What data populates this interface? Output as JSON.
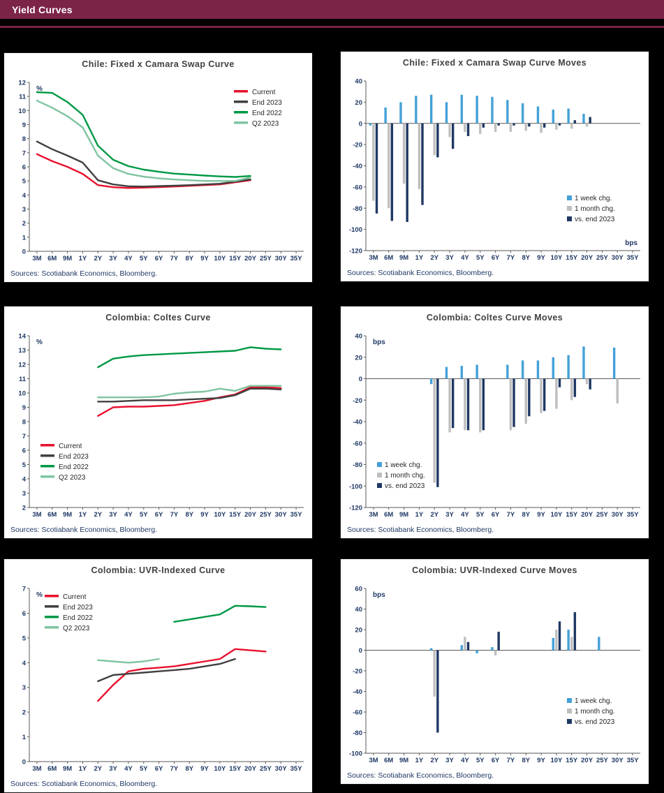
{
  "page": {
    "header_title": "Yield Curves",
    "header_color": "#7c2348",
    "background": "#000000"
  },
  "chart_data": [
    {
      "title": "Chile: Fixed x Camara Swap Curve",
      "sources": "Sources: Scotiabank Economics, Bloomberg.",
      "type": "line",
      "unit": "%",
      "unit_pos": "top-left",
      "ylim": [
        0,
        12
      ],
      "ystep": 1,
      "legend_pos": "top-right",
      "grid": false,
      "categories": [
        "3M",
        "6M",
        "9M",
        "1Y",
        "2Y",
        "3Y",
        "4Y",
        "5Y",
        "6Y",
        "7Y",
        "8Y",
        "9Y",
        "10Y",
        "15Y",
        "20Y",
        "25Y",
        "30Y",
        "35Y"
      ],
      "series": [
        {
          "name": "Current",
          "color": "#e8112d",
          "values": [
            6.9,
            6.4,
            6.0,
            5.5,
            4.7,
            4.55,
            4.5,
            4.52,
            4.56,
            4.6,
            4.65,
            4.7,
            4.75,
            4.9,
            5.05,
            null,
            null,
            null
          ]
        },
        {
          "name": "End 2023",
          "color": "#404040",
          "values": [
            7.8,
            7.25,
            6.8,
            6.3,
            5.05,
            4.75,
            4.62,
            4.6,
            4.63,
            4.66,
            4.7,
            4.75,
            4.8,
            4.95,
            5.1,
            null,
            null,
            null
          ]
        },
        {
          "name": "End 2022",
          "color": "#009845",
          "values": [
            11.3,
            11.25,
            10.6,
            9.7,
            7.5,
            6.5,
            6.05,
            5.8,
            5.65,
            5.52,
            5.45,
            5.38,
            5.32,
            5.28,
            5.35,
            null,
            null,
            null
          ]
        },
        {
          "name": "Q2 2023",
          "color": "#7fc4a1",
          "values": [
            10.7,
            10.2,
            9.6,
            8.8,
            6.8,
            5.9,
            5.5,
            5.3,
            5.18,
            5.1,
            5.05,
            5.0,
            5.0,
            5.0,
            5.25,
            null,
            null,
            null
          ]
        }
      ]
    },
    {
      "title": "Chile: Fixed x Camara Swap Curve Moves",
      "sources": "Sources: Scotiabank Economics, Bloomberg.",
      "type": "bar",
      "unit": "bps",
      "unit_pos": "bottom-right",
      "ylim": [
        -120,
        40
      ],
      "ystep": 20,
      "legend_pos": "right-low",
      "grid": false,
      "categories": [
        "3M",
        "6M",
        "9M",
        "1Y",
        "2Y",
        "3Y",
        "4Y",
        "5Y",
        "6Y",
        "7Y",
        "8Y",
        "9Y",
        "10Y",
        "15Y",
        "20Y",
        "25Y",
        "30Y",
        "35Y"
      ],
      "series": [
        {
          "name": "1 week chg.",
          "color": "#44a1d8",
          "values": [
            -2,
            15,
            20,
            26,
            27,
            20,
            27,
            26,
            25,
            22,
            19,
            16,
            13,
            14,
            9,
            null,
            null,
            null
          ]
        },
        {
          "name": "1 month chg.",
          "color": "#bfbfbf",
          "values": [
            -73,
            -80,
            -57,
            -62,
            -30,
            -13,
            -8,
            -10,
            -8,
            -8,
            -7,
            -9,
            -6,
            -5,
            -3,
            null,
            null,
            null
          ]
        },
        {
          "name": "vs. end 2023",
          "color": "#1f3864",
          "values": [
            -85,
            -92,
            -93,
            -77,
            -32,
            -24,
            -12,
            -4,
            -2,
            -2,
            -3,
            -4,
            -2,
            3,
            6,
            null,
            null,
            null
          ]
        }
      ]
    },
    {
      "title": "Colombia: Coltes Curve",
      "sources": "Sources: Scotiabank Economics, Bloomberg.",
      "type": "line",
      "unit": "%",
      "unit_pos": "top-left",
      "ylim": [
        2,
        14
      ],
      "ystep": 1,
      "legend_pos": "bottom-left",
      "grid": false,
      "categories": [
        "3M",
        "6M",
        "9M",
        "1Y",
        "2Y",
        "3Y",
        "4Y",
        "5Y",
        "6Y",
        "7Y",
        "8Y",
        "9Y",
        "10Y",
        "15Y",
        "20Y",
        "25Y",
        "30Y",
        "35Y"
      ],
      "series": [
        {
          "name": "Current",
          "color": "#e8112d",
          "values": [
            null,
            null,
            null,
            null,
            8.4,
            9.0,
            9.05,
            9.05,
            9.1,
            9.15,
            9.3,
            9.45,
            9.7,
            9.9,
            10.4,
            10.4,
            10.35,
            null
          ]
        },
        {
          "name": "End 2023",
          "color": "#404040",
          "values": [
            null,
            null,
            null,
            null,
            9.4,
            9.4,
            9.45,
            9.5,
            9.5,
            9.5,
            9.55,
            9.6,
            9.65,
            9.85,
            10.3,
            10.3,
            10.25,
            null
          ]
        },
        {
          "name": "End 2022",
          "color": "#009845",
          "values": [
            null,
            null,
            null,
            null,
            11.8,
            12.4,
            12.55,
            12.65,
            12.7,
            12.75,
            12.8,
            12.85,
            12.9,
            12.95,
            13.2,
            13.1,
            13.05,
            null
          ]
        },
        {
          "name": "Q2 2023",
          "color": "#7fc4a1",
          "values": [
            null,
            null,
            null,
            null,
            9.7,
            9.7,
            9.7,
            9.7,
            9.75,
            9.95,
            10.05,
            10.1,
            10.3,
            10.15,
            10.5,
            10.5,
            10.5,
            null
          ]
        }
      ]
    },
    {
      "title": "Colombia: Coltes Curve Moves",
      "sources": "Sources: Scotiabank Economics, Bloomberg.",
      "type": "bar",
      "unit": "bps",
      "unit_pos": "top-left",
      "ylim": [
        -120,
        40
      ],
      "ystep": 20,
      "legend_pos": "bottom-left",
      "grid": false,
      "categories": [
        "3M",
        "6M",
        "9M",
        "1Y",
        "2Y",
        "3Y",
        "4Y",
        "5Y",
        "6Y",
        "7Y",
        "8Y",
        "9Y",
        "10Y",
        "15Y",
        "20Y",
        "25Y",
        "30Y",
        "35Y"
      ],
      "series": [
        {
          "name": "1 week chg.",
          "color": "#44a1d8",
          "values": [
            null,
            null,
            null,
            null,
            -5,
            11,
            12,
            13,
            null,
            13,
            17,
            17,
            20,
            22,
            30,
            null,
            29,
            null
          ]
        },
        {
          "name": "1 month chg.",
          "color": "#bfbfbf",
          "values": [
            null,
            null,
            null,
            null,
            -97,
            -50,
            -48,
            -50,
            null,
            -48,
            -42,
            -32,
            -28,
            -20,
            -5,
            null,
            -23,
            null
          ]
        },
        {
          "name": "vs. end 2023",
          "color": "#1f3864",
          "values": [
            null,
            null,
            null,
            null,
            -101,
            -46,
            -48,
            -48,
            null,
            -45,
            -35,
            -30,
            -8,
            -17,
            -10,
            null,
            null,
            null
          ]
        }
      ]
    },
    {
      "title": "Colombia: UVR-Indexed Curve",
      "sources": "Sources: Scotiabank Economics, Bloomberg.",
      "type": "line",
      "unit": "%",
      "unit_pos": "top-left",
      "ylim": [
        0,
        7
      ],
      "ystep": 1,
      "legend_pos": "top-left",
      "grid": false,
      "categories": [
        "3M",
        "6M",
        "9M",
        "1Y",
        "2Y",
        "3Y",
        "4Y",
        "5Y",
        "6Y",
        "7Y",
        "8Y",
        "9Y",
        "10Y",
        "15Y",
        "20Y",
        "25Y",
        "30Y",
        "35Y"
      ],
      "series": [
        {
          "name": "Current",
          "color": "#e8112d",
          "values": [
            null,
            null,
            null,
            null,
            2.45,
            3.1,
            3.65,
            3.75,
            3.8,
            3.85,
            3.95,
            4.05,
            4.15,
            4.55,
            4.5,
            4.45,
            null,
            null
          ]
        },
        {
          "name": "End 2023",
          "color": "#404040",
          "values": [
            null,
            null,
            null,
            null,
            3.25,
            3.5,
            3.55,
            3.6,
            3.65,
            3.7,
            3.75,
            3.85,
            3.95,
            4.15,
            null,
            null,
            null,
            null
          ]
        },
        {
          "name": "End 2022",
          "color": "#009845",
          "values": [
            null,
            null,
            null,
            null,
            null,
            null,
            null,
            null,
            null,
            5.65,
            5.75,
            5.85,
            5.95,
            6.3,
            6.28,
            6.25,
            null,
            null
          ]
        },
        {
          "name": "Q2 2023",
          "color": "#7fc4a1",
          "values": [
            null,
            null,
            null,
            null,
            4.1,
            4.05,
            4.0,
            4.05,
            4.15,
            null,
            null,
            null,
            null,
            null,
            null,
            null,
            null,
            null
          ]
        }
      ]
    },
    {
      "title": "Colombia: UVR-Indexed Curve Moves",
      "sources": "Sources: Scotiabank Economics, Bloomberg.",
      "type": "bar",
      "unit": "bps",
      "unit_pos": "top-left",
      "ylim": [
        -100,
        60
      ],
      "ystep": 20,
      "legend_pos": "right-low",
      "grid": false,
      "categories": [
        "3M",
        "6M",
        "9M",
        "1Y",
        "2Y",
        "3Y",
        "4Y",
        "5Y",
        "6Y",
        "7Y",
        "8Y",
        "9Y",
        "10Y",
        "15Y",
        "20Y",
        "25Y",
        "30Y",
        "35Y"
      ],
      "series": [
        {
          "name": "1 week chg.",
          "color": "#44a1d8",
          "values": [
            null,
            null,
            null,
            null,
            2,
            null,
            5,
            -3,
            3,
            null,
            null,
            null,
            12,
            20,
            null,
            13,
            null,
            null
          ]
        },
        {
          "name": "1 month chg.",
          "color": "#bfbfbf",
          "values": [
            null,
            null,
            null,
            null,
            -45,
            null,
            13,
            null,
            -5,
            null,
            null,
            null,
            20,
            13,
            null,
            null,
            null,
            null
          ]
        },
        {
          "name": "vs. end 2023",
          "color": "#1f3864",
          "values": [
            null,
            null,
            null,
            null,
            -80,
            null,
            8,
            null,
            18,
            null,
            null,
            null,
            28,
            37,
            null,
            null,
            null,
            null
          ]
        }
      ]
    }
  ]
}
